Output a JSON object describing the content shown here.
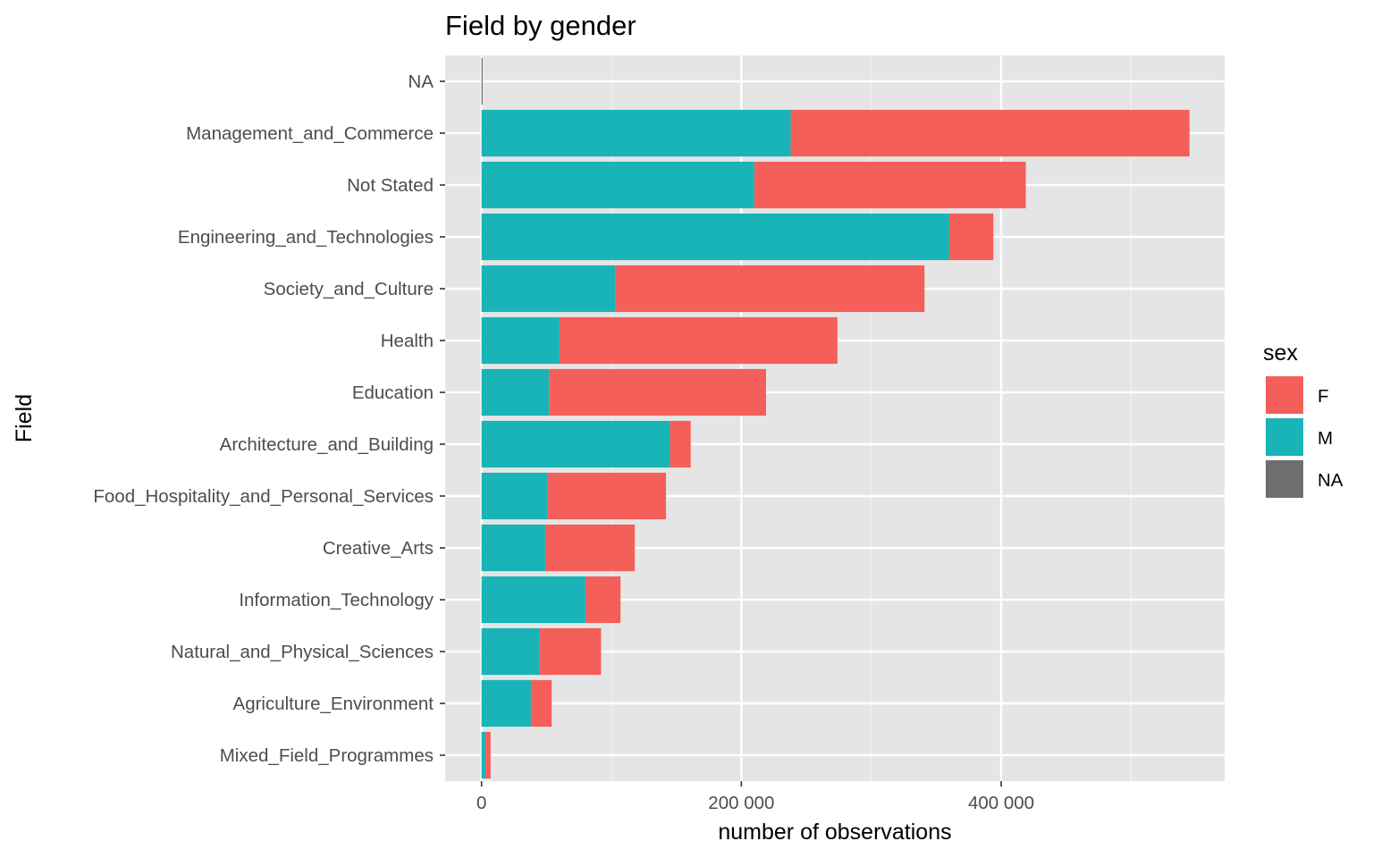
{
  "chart_data": {
    "type": "bar",
    "orientation": "horizontal",
    "stacked": true,
    "title": "Field by gender",
    "xlabel": "number of observations",
    "ylabel": "Field",
    "xlim": [
      -28000,
      572000
    ],
    "xticks": [
      0,
      200000,
      400000
    ],
    "xtick_labels": [
      "0",
      "200 000",
      "400 000"
    ],
    "grid": true,
    "legend_position": "right",
    "legend_title": "sex",
    "categories": [
      "NA",
      "Management_and_Commerce",
      "Not Stated",
      "Engineering_and_Technologies",
      "Society_and_Culture",
      "Health",
      "Education",
      "Architecture_and_Building",
      "Food_Hospitality_and_Personal_Services",
      "Creative_Arts",
      "Information_Technology",
      "Natural_and_Physical_Sciences",
      "Agriculture_Environment",
      "Mixed_Field_Programmes"
    ],
    "series": [
      {
        "name": "M",
        "color": "#19b4b8",
        "values": [
          0,
          238000,
          210000,
          360000,
          103000,
          60000,
          52000,
          145000,
          51000,
          49000,
          80000,
          45000,
          38000,
          3000
        ]
      },
      {
        "name": "F",
        "color": "#f45f5a",
        "values": [
          0,
          307000,
          209000,
          34000,
          238000,
          214000,
          167000,
          16000,
          91000,
          69000,
          27000,
          47000,
          16000,
          4000
        ]
      },
      {
        "name": "NA",
        "color": "#6e6e6e",
        "values": [
          400,
          0,
          0,
          0,
          0,
          0,
          0,
          0,
          0,
          0,
          0,
          0,
          0,
          0
        ]
      }
    ],
    "legend_items": [
      {
        "label": "F",
        "color": "#f45f5a"
      },
      {
        "label": "M",
        "color": "#19b4b8"
      },
      {
        "label": "NA",
        "color": "#6e6e6e"
      }
    ]
  }
}
